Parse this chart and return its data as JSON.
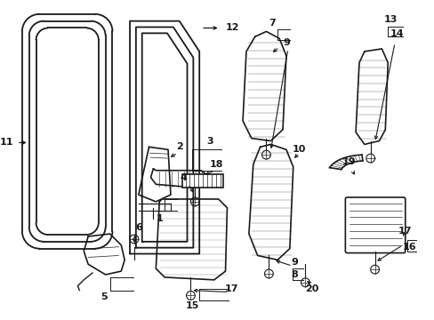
{
  "bg_color": "#ffffff",
  "lc": "#1a1a1a",
  "figsize": [
    4.89,
    3.6
  ],
  "dpi": 100,
  "fs": 8.0
}
